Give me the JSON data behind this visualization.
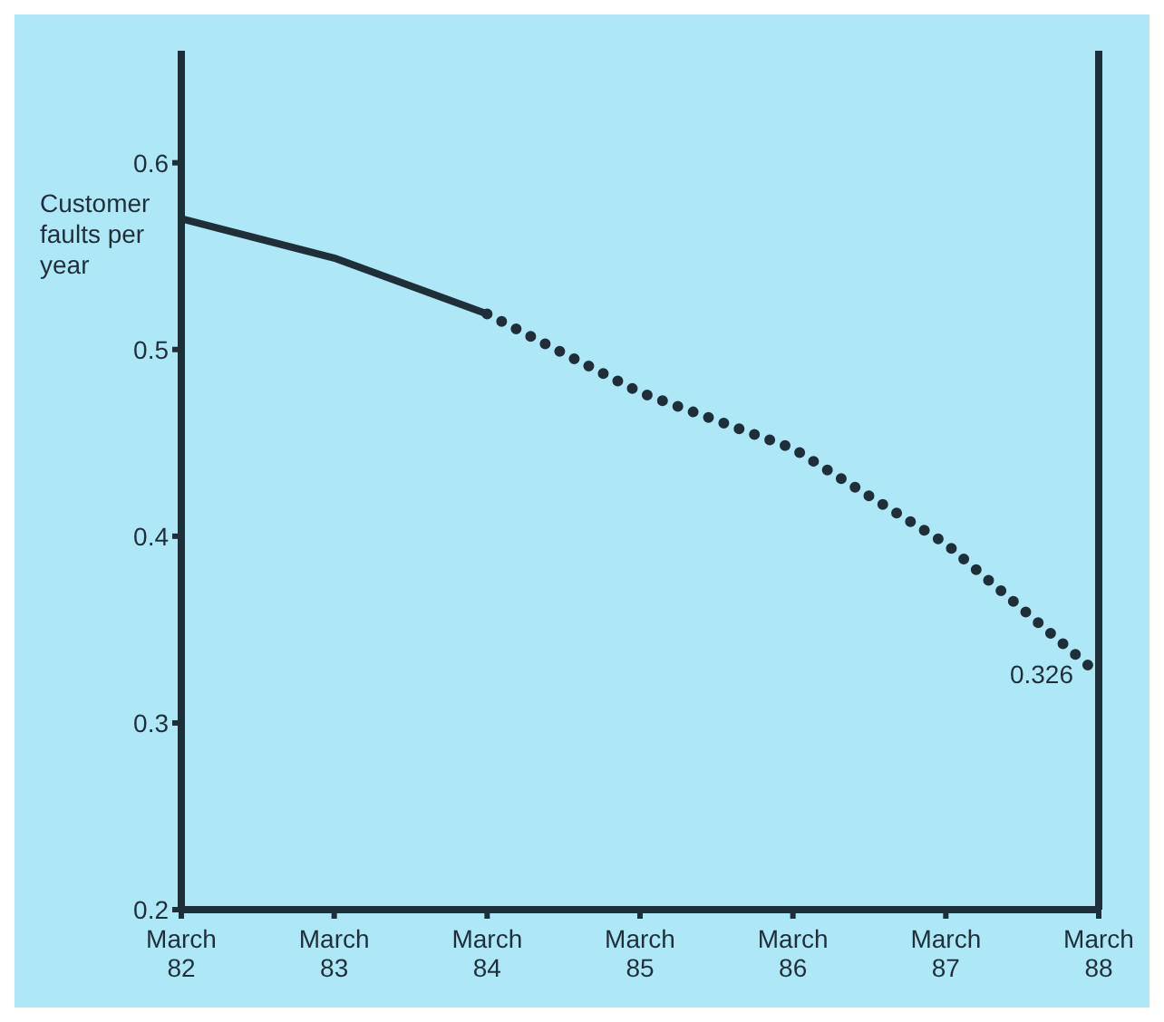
{
  "chart_data": {
    "type": "line",
    "ylabel": "Customer faults per year",
    "categories": [
      "March 82",
      "March 83",
      "March 84",
      "March 85",
      "March 86",
      "March 87",
      "March 88"
    ],
    "series": [
      {
        "color": "#1f2f3a",
        "line_style": "solid",
        "values": [
          0.57,
          0.549,
          0.519,
          null,
          null,
          null,
          null
        ]
      },
      {
        "color": "#1f2f3a",
        "line_style": "dotted",
        "values": [
          null,
          null,
          0.519,
          0.477,
          0.447,
          0.396,
          0.326
        ]
      }
    ],
    "ylim": [
      0.2,
      0.66
    ],
    "yticks": [
      0.2,
      0.3,
      0.4,
      0.5,
      0.6
    ],
    "marker": "none",
    "annotations": [
      {
        "text": "0.326",
        "x": "March 88",
        "y": 0.326
      }
    ]
  }
}
